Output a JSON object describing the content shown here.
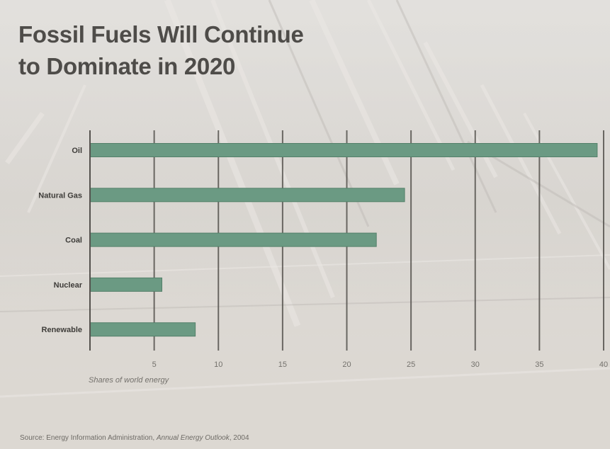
{
  "title_lines": [
    "Fossil Fuels Will Continue",
    "to Dominate in 2020"
  ],
  "source": {
    "prefix": "Source: Energy Information Administration, ",
    "publication": "Annual Energy Outlook",
    "suffix": ", 2004"
  },
  "colors": {
    "bar": "#6b9a83",
    "bar_stroke": "#54806a",
    "axis": "#55524e",
    "label": "#3e3c39",
    "tick_label": "#74716c"
  },
  "chart_data": {
    "type": "bar",
    "orientation": "horizontal",
    "categories": [
      "Oil",
      "Natural Gas",
      "Coal",
      "Nuclear",
      "Renewable"
    ],
    "values": [
      39.5,
      24.5,
      22.3,
      5.6,
      8.2
    ],
    "xlabel": "Shares of world energy",
    "ylabel": "",
    "xlim": [
      0,
      40
    ],
    "xticks": [
      5,
      10,
      15,
      20,
      25,
      30,
      35,
      40
    ],
    "grid": true
  }
}
